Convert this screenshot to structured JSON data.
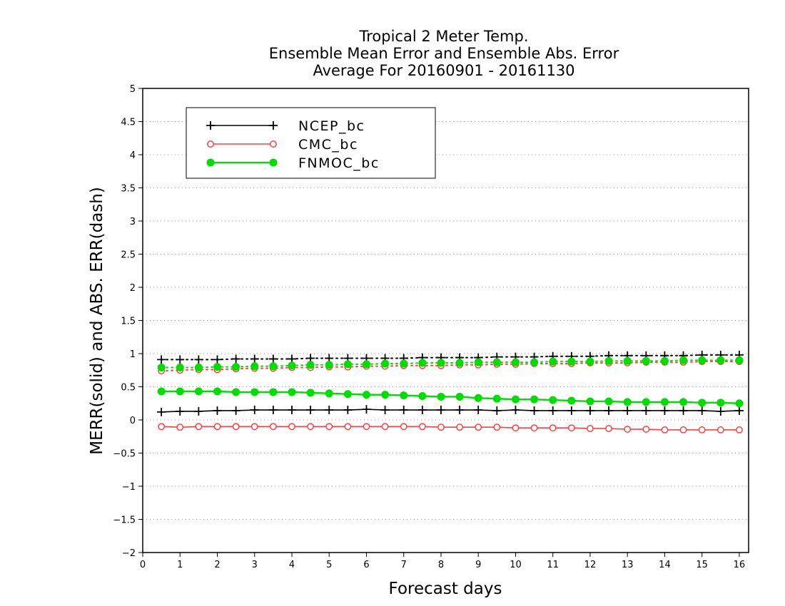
{
  "chart_data": {
    "type": "line",
    "title_lines": [
      "Tropical 2 Meter Temp.",
      "Ensemble Mean Error and Ensemble Abs. Error",
      "Average For 20160901 - 20161130"
    ],
    "xlabel": "Forecast days",
    "ylabel": "MERR(solid) and ABS. ERR(dash)",
    "xlim": [
      0,
      16.25
    ],
    "ylim": [
      -2,
      5
    ],
    "x_ticks": [
      "0",
      "1",
      "2",
      "3",
      "4",
      "5",
      "6",
      "7",
      "8",
      "9",
      "10",
      "11",
      "12",
      "13",
      "14",
      "15",
      "16"
    ],
    "y_ticks": [
      "5",
      "4.5",
      "4",
      "3.5",
      "3",
      "2.5",
      "2",
      "1.5",
      "1",
      "0.5",
      "0",
      "-0.5",
      "-1",
      "-1.5",
      "-2"
    ],
    "grid": "horizontal dotted",
    "legend_position": "top-left",
    "x": [
      0.5,
      1,
      1.5,
      2,
      2.5,
      3,
      3.5,
      4,
      4.5,
      5,
      5.5,
      6,
      6.5,
      7,
      7.5,
      8,
      8.5,
      9,
      9.5,
      10,
      10.5,
      11,
      11.5,
      12,
      12.5,
      13,
      13.5,
      14,
      14.5,
      15,
      15.5,
      16
    ],
    "series": [
      {
        "name": "NCEP_bc",
        "color": "#000000",
        "marker": "plus",
        "merr": [
          0.12,
          0.13,
          0.13,
          0.14,
          0.14,
          0.15,
          0.15,
          0.15,
          0.15,
          0.15,
          0.15,
          0.16,
          0.15,
          0.15,
          0.15,
          0.15,
          0.15,
          0.15,
          0.14,
          0.15,
          0.14,
          0.14,
          0.14,
          0.14,
          0.14,
          0.14,
          0.14,
          0.14,
          0.14,
          0.14,
          0.13,
          0.14
        ],
        "abs_err": [
          0.91,
          0.91,
          0.91,
          0.91,
          0.92,
          0.92,
          0.92,
          0.92,
          0.93,
          0.93,
          0.93,
          0.93,
          0.93,
          0.93,
          0.94,
          0.94,
          0.94,
          0.94,
          0.95,
          0.95,
          0.95,
          0.96,
          0.96,
          0.96,
          0.97,
          0.97,
          0.97,
          0.97,
          0.97,
          0.98,
          0.98,
          0.98
        ]
      },
      {
        "name": "CMC_bc",
        "color": "#ff4040",
        "marker": "open-circle",
        "merr": [
          -0.1,
          -0.11,
          -0.1,
          -0.1,
          -0.1,
          -0.1,
          -0.1,
          -0.1,
          -0.1,
          -0.1,
          -0.1,
          -0.1,
          -0.1,
          -0.1,
          -0.1,
          -0.11,
          -0.11,
          -0.11,
          -0.11,
          -0.12,
          -0.12,
          -0.12,
          -0.12,
          -0.13,
          -0.13,
          -0.14,
          -0.14,
          -0.15,
          -0.15,
          -0.15,
          -0.15,
          -0.15
        ],
        "abs_err": [
          0.74,
          0.75,
          0.76,
          0.76,
          0.77,
          0.78,
          0.78,
          0.79,
          0.79,
          0.8,
          0.8,
          0.81,
          0.81,
          0.82,
          0.82,
          0.82,
          0.83,
          0.83,
          0.84,
          0.84,
          0.85,
          0.85,
          0.85,
          0.86,
          0.86,
          0.86,
          0.87,
          0.87,
          0.87,
          0.88,
          0.88,
          0.88
        ]
      },
      {
        "name": "FNMOC_bc",
        "color": "#00dd00",
        "marker": "filled-circle",
        "merr": [
          0.43,
          0.43,
          0.43,
          0.43,
          0.42,
          0.42,
          0.42,
          0.42,
          0.41,
          0.4,
          0.39,
          0.38,
          0.38,
          0.37,
          0.36,
          0.35,
          0.35,
          0.33,
          0.32,
          0.31,
          0.31,
          0.3,
          0.29,
          0.28,
          0.28,
          0.27,
          0.27,
          0.27,
          0.27,
          0.26,
          0.26,
          0.25
        ],
        "abs_err": [
          0.79,
          0.79,
          0.79,
          0.8,
          0.8,
          0.81,
          0.81,
          0.82,
          0.83,
          0.83,
          0.84,
          0.84,
          0.85,
          0.85,
          0.86,
          0.86,
          0.86,
          0.87,
          0.87,
          0.87,
          0.87,
          0.88,
          0.88,
          0.88,
          0.89,
          0.89,
          0.89,
          0.89,
          0.9,
          0.9,
          0.9,
          0.9
        ]
      }
    ]
  }
}
